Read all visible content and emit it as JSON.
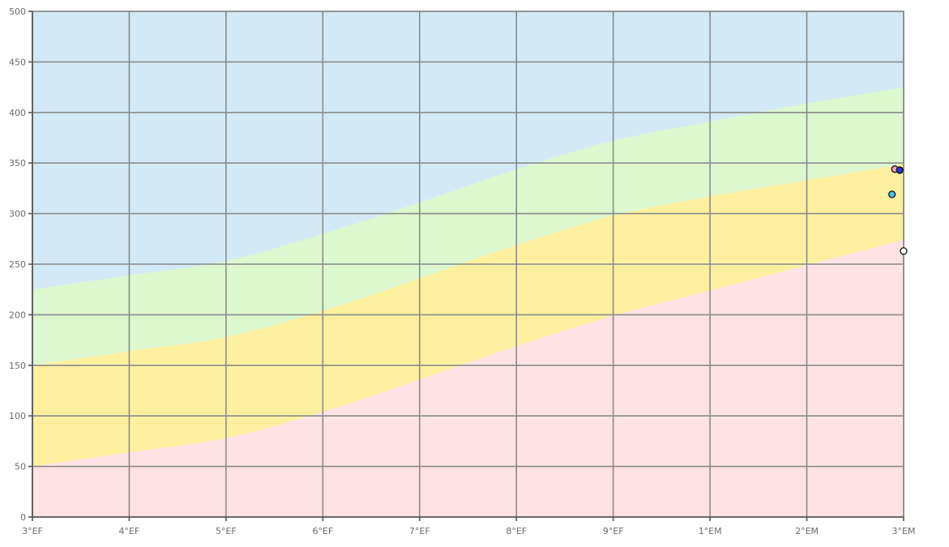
{
  "chart_data": {
    "type": "area",
    "title": "",
    "xlabel": "",
    "ylabel": "",
    "x_ticks": [
      "3°EF",
      "4°EF",
      "5°EF",
      "6°EF",
      "7°EF",
      "8°EF",
      "9°EF",
      "1°EM",
      "2°EM",
      "3°EM"
    ],
    "y_ticks": [
      "0",
      "50",
      "100",
      "150",
      "200",
      "250",
      "300",
      "350",
      "400",
      "450",
      "500"
    ],
    "ylim": [
      0,
      500
    ],
    "x_range": [
      0,
      9
    ],
    "grid": true,
    "legend": "none",
    "bands": [
      {
        "color": "#ffe2e4",
        "lower": [
          [
            0,
            0
          ],
          [
            9,
            0
          ]
        ],
        "upper": [
          [
            0,
            50
          ],
          [
            1,
            64
          ],
          [
            2,
            78
          ],
          [
            3,
            104
          ],
          [
            4,
            136
          ],
          [
            5,
            169
          ],
          [
            6,
            199
          ],
          [
            7,
            224
          ],
          [
            8,
            249
          ],
          [
            9,
            274
          ]
        ]
      },
      {
        "color": "#fdefa0",
        "lower": [
          [
            0,
            50
          ],
          [
            1,
            64
          ],
          [
            2,
            78
          ],
          [
            3,
            104
          ],
          [
            4,
            136
          ],
          [
            5,
            169
          ],
          [
            6,
            199
          ],
          [
            7,
            224
          ],
          [
            8,
            249
          ],
          [
            9,
            274
          ]
        ],
        "upper": [
          [
            0,
            150
          ],
          [
            1,
            164
          ],
          [
            2,
            178
          ],
          [
            3,
            204
          ],
          [
            4,
            236
          ],
          [
            5,
            269
          ],
          [
            6,
            298
          ],
          [
            7,
            317
          ],
          [
            8,
            333
          ],
          [
            9,
            349
          ]
        ]
      },
      {
        "color": "#ddf7cf",
        "lower": [
          [
            0,
            150
          ],
          [
            1,
            164
          ],
          [
            2,
            178
          ],
          [
            3,
            204
          ],
          [
            4,
            236
          ],
          [
            5,
            269
          ],
          [
            6,
            298
          ],
          [
            7,
            317
          ],
          [
            8,
            333
          ],
          [
            9,
            349
          ]
        ],
        "upper": [
          [
            0,
            225
          ],
          [
            1,
            239
          ],
          [
            2,
            253
          ],
          [
            3,
            280
          ],
          [
            4,
            311
          ],
          [
            5,
            344
          ],
          [
            6,
            372
          ],
          [
            7,
            391
          ],
          [
            8,
            409
          ],
          [
            9,
            425
          ]
        ]
      },
      {
        "color": "#d3e9f5",
        "lower": [
          [
            0,
            225
          ],
          [
            1,
            239
          ],
          [
            2,
            253
          ],
          [
            3,
            280
          ],
          [
            4,
            311
          ],
          [
            5,
            344
          ],
          [
            6,
            372
          ],
          [
            7,
            391
          ],
          [
            8,
            409
          ],
          [
            9,
            425
          ]
        ],
        "upper": [
          [
            0,
            500
          ],
          [
            9,
            500
          ]
        ]
      }
    ],
    "points": [
      {
        "x": 8.91,
        "y": 344,
        "color": "#ef9fc4"
      },
      {
        "x": 8.96,
        "y": 343,
        "color": "#2731d8"
      },
      {
        "x": 8.88,
        "y": 319,
        "color": "#52c0e4"
      },
      {
        "x": 9.0,
        "y": 263,
        "color": "#ffffff"
      }
    ]
  }
}
